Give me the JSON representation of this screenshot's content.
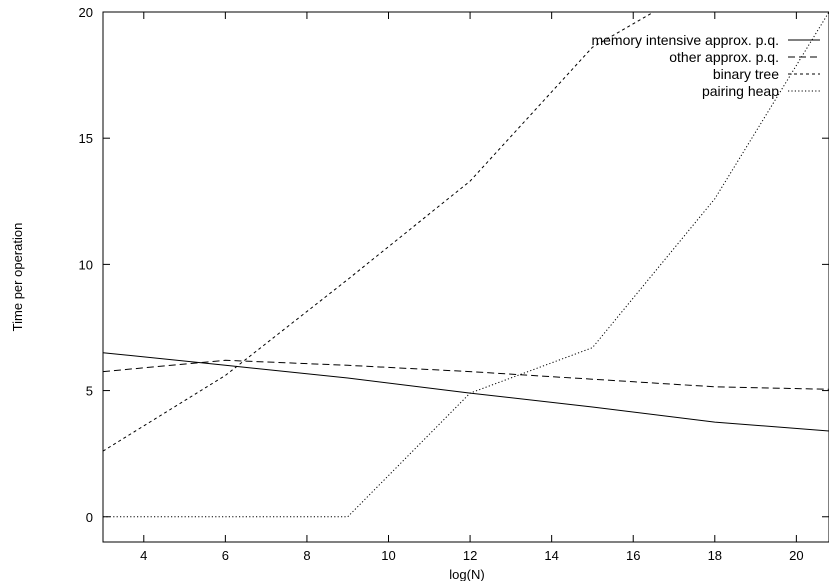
{
  "chart_data": {
    "type": "line",
    "title": "",
    "xlabel": "log(N)",
    "ylabel": "Time per operation",
    "xlim": [
      3,
      20.8
    ],
    "ylim": [
      -1,
      20
    ],
    "x_ticks": [
      4,
      6,
      8,
      10,
      12,
      14,
      16,
      18,
      20
    ],
    "y_ticks": [
      0,
      5,
      10,
      15,
      20
    ],
    "grid": false,
    "legend_position": "top-right",
    "series": [
      {
        "name": "memory intensive approx. p.q.",
        "line_style": "solid",
        "points": [
          [
            3,
            6.5
          ],
          [
            6,
            6.0
          ],
          [
            9,
            5.5
          ],
          [
            12,
            4.9
          ],
          [
            15,
            4.35
          ],
          [
            18,
            3.75
          ],
          [
            20.8,
            3.4
          ]
        ]
      },
      {
        "name": "other approx. p.q.",
        "line_style": "dashed",
        "points": [
          [
            3,
            5.75
          ],
          [
            6,
            6.2
          ],
          [
            9,
            6.0
          ],
          [
            12,
            5.75
          ],
          [
            15,
            5.45
          ],
          [
            18,
            5.15
          ],
          [
            20.8,
            5.05
          ]
        ]
      },
      {
        "name": "binary tree",
        "line_style": "short-dash",
        "points": [
          [
            3,
            2.6
          ],
          [
            6,
            5.6
          ],
          [
            9,
            9.4
          ],
          [
            12,
            13.3
          ],
          [
            15,
            18.6
          ],
          [
            16.5,
            20
          ]
        ]
      },
      {
        "name": "pairing heap",
        "line_style": "dotted",
        "points": [
          [
            3,
            0
          ],
          [
            9,
            0
          ],
          [
            12,
            4.9
          ],
          [
            15,
            6.7
          ],
          [
            18,
            12.6
          ],
          [
            20.8,
            20
          ]
        ]
      }
    ]
  }
}
